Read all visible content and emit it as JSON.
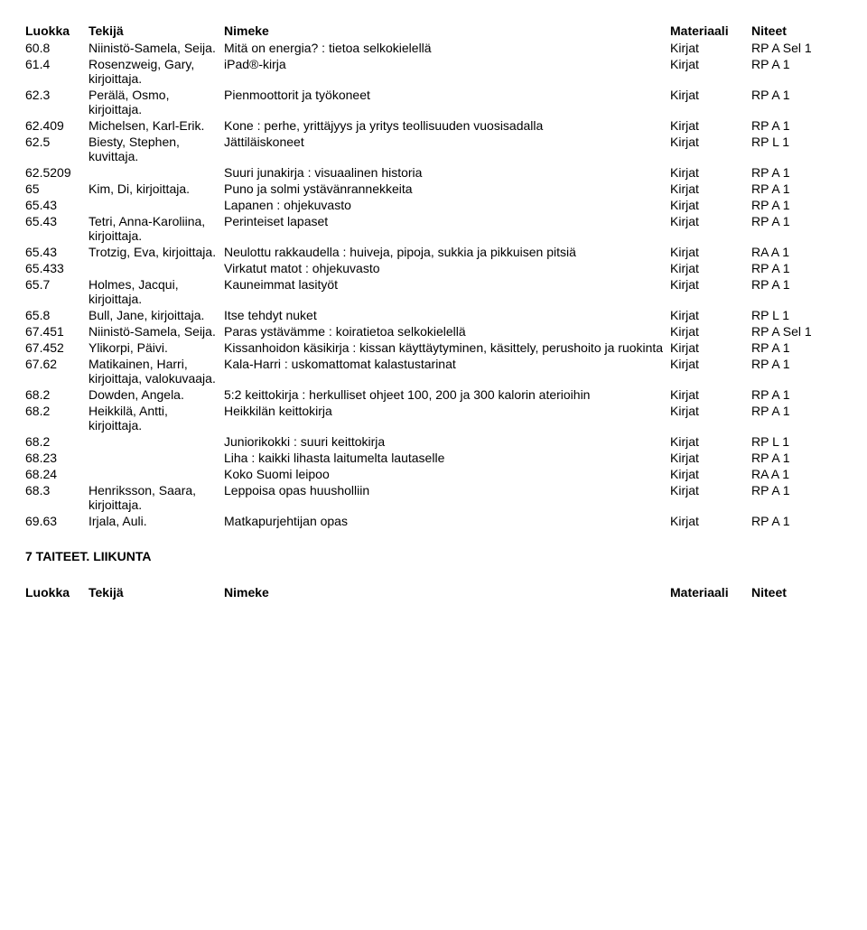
{
  "headers": {
    "class": "Luokka",
    "author": "Tekijä",
    "title": "Nimeke",
    "material": "Materiaali",
    "note": "Niteet"
  },
  "rows": [
    {
      "class": "60.8",
      "author": "Niinistö-Samela, Seija.",
      "title": "Mitä on energia? : tietoa selkokielellä",
      "material": "Kirjat",
      "note": "RP A Sel 1"
    },
    {
      "class": "61.4",
      "author": "Rosenzweig, Gary, kirjoittaja.",
      "title": "iPad®-kirja",
      "material": "Kirjat",
      "note": "RP A 1"
    },
    {
      "class": "62.3",
      "author": "Perälä, Osmo, kirjoittaja.",
      "title": "Pienmoottorit ja työkoneet",
      "material": "Kirjat",
      "note": "RP A 1"
    },
    {
      "class": "62.409",
      "author": "Michelsen, Karl-Erik.",
      "title": "Kone : perhe, yrittäjyys ja yritys teollisuuden vuosisadalla",
      "material": "Kirjat",
      "note": "RP A 1"
    },
    {
      "class": "62.5",
      "author": "Biesty, Stephen, kuvittaja.",
      "title": "Jättiläiskoneet",
      "material": "Kirjat",
      "note": "RP L 1"
    },
    {
      "class": "62.5209",
      "author": "",
      "title": "Suuri junakirja : visuaalinen historia",
      "material": "Kirjat",
      "note": "RP A 1"
    },
    {
      "class": "65",
      "author": "Kim, Di, kirjoittaja.",
      "title": "Puno ja solmi ystävänrannekkeita",
      "material": "Kirjat",
      "note": "RP A 1"
    },
    {
      "class": "65.43",
      "author": "",
      "title": "Lapanen : ohjekuvasto",
      "material": "Kirjat",
      "note": "RP A 1"
    },
    {
      "class": "65.43",
      "author": "Tetri, Anna-Karoliina, kirjoittaja.",
      "title": "Perinteiset lapaset",
      "material": "Kirjat",
      "note": "RP A 1"
    },
    {
      "class": "65.43",
      "author": "Trotzig, Eva, kirjoittaja.",
      "title": "Neulottu rakkaudella : huiveja, pipoja, sukkia ja pikkuisen pitsiä",
      "material": "Kirjat",
      "note": "RA A 1"
    },
    {
      "class": "65.433",
      "author": "",
      "title": "Virkatut matot : ohjekuvasto",
      "material": "Kirjat",
      "note": "RP A 1"
    },
    {
      "class": "65.7",
      "author": "Holmes, Jacqui, kirjoittaja.",
      "title": "Kauneimmat lasityöt",
      "material": "Kirjat",
      "note": "RP A 1"
    },
    {
      "class": "65.8",
      "author": "Bull, Jane, kirjoittaja.",
      "title": "Itse tehdyt nuket",
      "material": "Kirjat",
      "note": "RP L 1"
    },
    {
      "class": "67.451",
      "author": "Niinistö-Samela, Seija.",
      "title": "Paras ystävämme : koiratietoa selkokielellä",
      "material": "Kirjat",
      "note": "RP A Sel 1"
    },
    {
      "class": "67.452",
      "author": "Ylikorpi, Päivi.",
      "title": "Kissanhoidon käsikirja : kissan käyttäytyminen, käsittely, perushoito ja ruokinta",
      "material": "Kirjat",
      "note": "RP A 1"
    },
    {
      "class": "67.62",
      "author": "Matikainen, Harri, kirjoittaja, valokuvaaja.",
      "title": "Kala-Harri : uskomattomat kalastustarinat",
      "material": "Kirjat",
      "note": "RP A 1"
    },
    {
      "class": "68.2",
      "author": "Dowden, Angela.",
      "title": "5:2 keittokirja : herkulliset ohjeet 100, 200 ja 300 kalorin aterioihin",
      "material": "Kirjat",
      "note": "RP A 1"
    },
    {
      "class": "68.2",
      "author": "Heikkilä, Antti, kirjoittaja.",
      "title": "Heikkilän keittokirja",
      "material": "Kirjat",
      "note": "RP A 1"
    },
    {
      "class": "68.2",
      "author": "",
      "title": "Juniorikokki : suuri keittokirja",
      "material": "Kirjat",
      "note": "RP L 1"
    },
    {
      "class": "68.23",
      "author": "",
      "title": "Liha : kaikki lihasta laitumelta lautaselle",
      "material": "Kirjat",
      "note": "RP A 1"
    },
    {
      "class": "68.24",
      "author": "",
      "title": "Koko Suomi leipoo",
      "material": "Kirjat",
      "note": "RA A 1"
    },
    {
      "class": "68.3",
      "author": "Henriksson, Saara, kirjoittaja.",
      "title": "Leppoisa opas huusholliin",
      "material": "Kirjat",
      "note": "RP A 1"
    },
    {
      "class": "69.63",
      "author": "Irjala, Auli.",
      "title": "Matkapurjehtijan opas",
      "material": "Kirjat",
      "note": "RP A 1"
    }
  ],
  "section_heading": "7 TAITEET. LIIKUNTA"
}
